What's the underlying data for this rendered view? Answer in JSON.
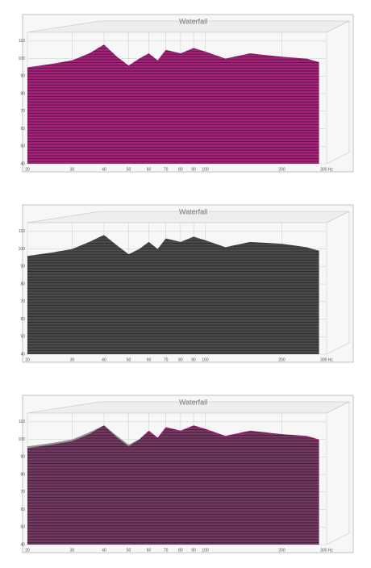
{
  "chart_data": [
    {
      "type": "waterfall",
      "title": "Waterfall",
      "xscale": "log",
      "x": [
        20,
        25,
        30,
        35,
        40,
        45,
        50,
        55,
        60,
        65,
        70,
        80,
        90,
        100,
        120,
        150,
        200,
        250,
        280
      ],
      "series": [
        {
          "color": "#a8207c",
          "values": [
            95,
            97,
            99,
            103,
            108,
            101,
            96,
            100,
            103,
            99,
            105,
            103,
            106,
            104,
            100,
            103,
            101,
            100,
            98
          ]
        }
      ],
      "xlim": [
        20,
        300
      ],
      "xticks": [
        20,
        30,
        40,
        50,
        60,
        70,
        80,
        90,
        100,
        200,
        {
          "value": 300,
          "label": "300 Hz"
        }
      ],
      "ylim": [
        40,
        115
      ],
      "yticks": [
        40,
        50,
        60,
        70,
        80,
        90,
        100,
        110
      ],
      "grid": true
    },
    {
      "type": "waterfall",
      "title": "Waterfall",
      "xscale": "log",
      "x": [
        20,
        25,
        30,
        35,
        40,
        45,
        50,
        55,
        60,
        65,
        70,
        80,
        90,
        100,
        120,
        150,
        200,
        250,
        280
      ],
      "series": [
        {
          "color": "#4a4a4a",
          "values": [
            96,
            98,
            100,
            104,
            108,
            102,
            97,
            100,
            104,
            100,
            106,
            104,
            107,
            105,
            101,
            104,
            103,
            101,
            99
          ]
        }
      ],
      "xlim": [
        20,
        300
      ],
      "xticks": [
        20,
        30,
        40,
        50,
        60,
        70,
        80,
        90,
        100,
        200,
        {
          "value": 300,
          "label": "300 Hz"
        }
      ],
      "ylim": [
        40,
        115
      ],
      "yticks": [
        40,
        50,
        60,
        70,
        80,
        90,
        100,
        110
      ],
      "grid": true
    },
    {
      "type": "waterfall",
      "title": "Waterfall",
      "xscale": "log",
      "x": [
        20,
        25,
        30,
        35,
        40,
        45,
        50,
        55,
        60,
        65,
        70,
        80,
        90,
        100,
        120,
        150,
        200,
        250,
        280
      ],
      "series": [
        {
          "color": "#a8207c",
          "values": [
            95,
            97,
            99,
            103,
            108,
            101,
            96,
            100,
            105,
            101,
            107,
            105,
            108,
            106,
            102,
            105,
            103,
            102,
            100
          ]
        },
        {
          "color": "#4a4a4a",
          "values": [
            96,
            98,
            100,
            104,
            108,
            102,
            97,
            100,
            104,
            100,
            106,
            104,
            107,
            105,
            101,
            104,
            103,
            101,
            99
          ]
        }
      ],
      "xlim": [
        20,
        300
      ],
      "xticks": [
        20,
        30,
        40,
        50,
        60,
        70,
        80,
        90,
        100,
        200,
        {
          "value": 300,
          "label": "300 Hz"
        }
      ],
      "ylim": [
        40,
        115
      ],
      "yticks": [
        40,
        50,
        60,
        70,
        80,
        90,
        100,
        110
      ],
      "grid": true
    }
  ]
}
